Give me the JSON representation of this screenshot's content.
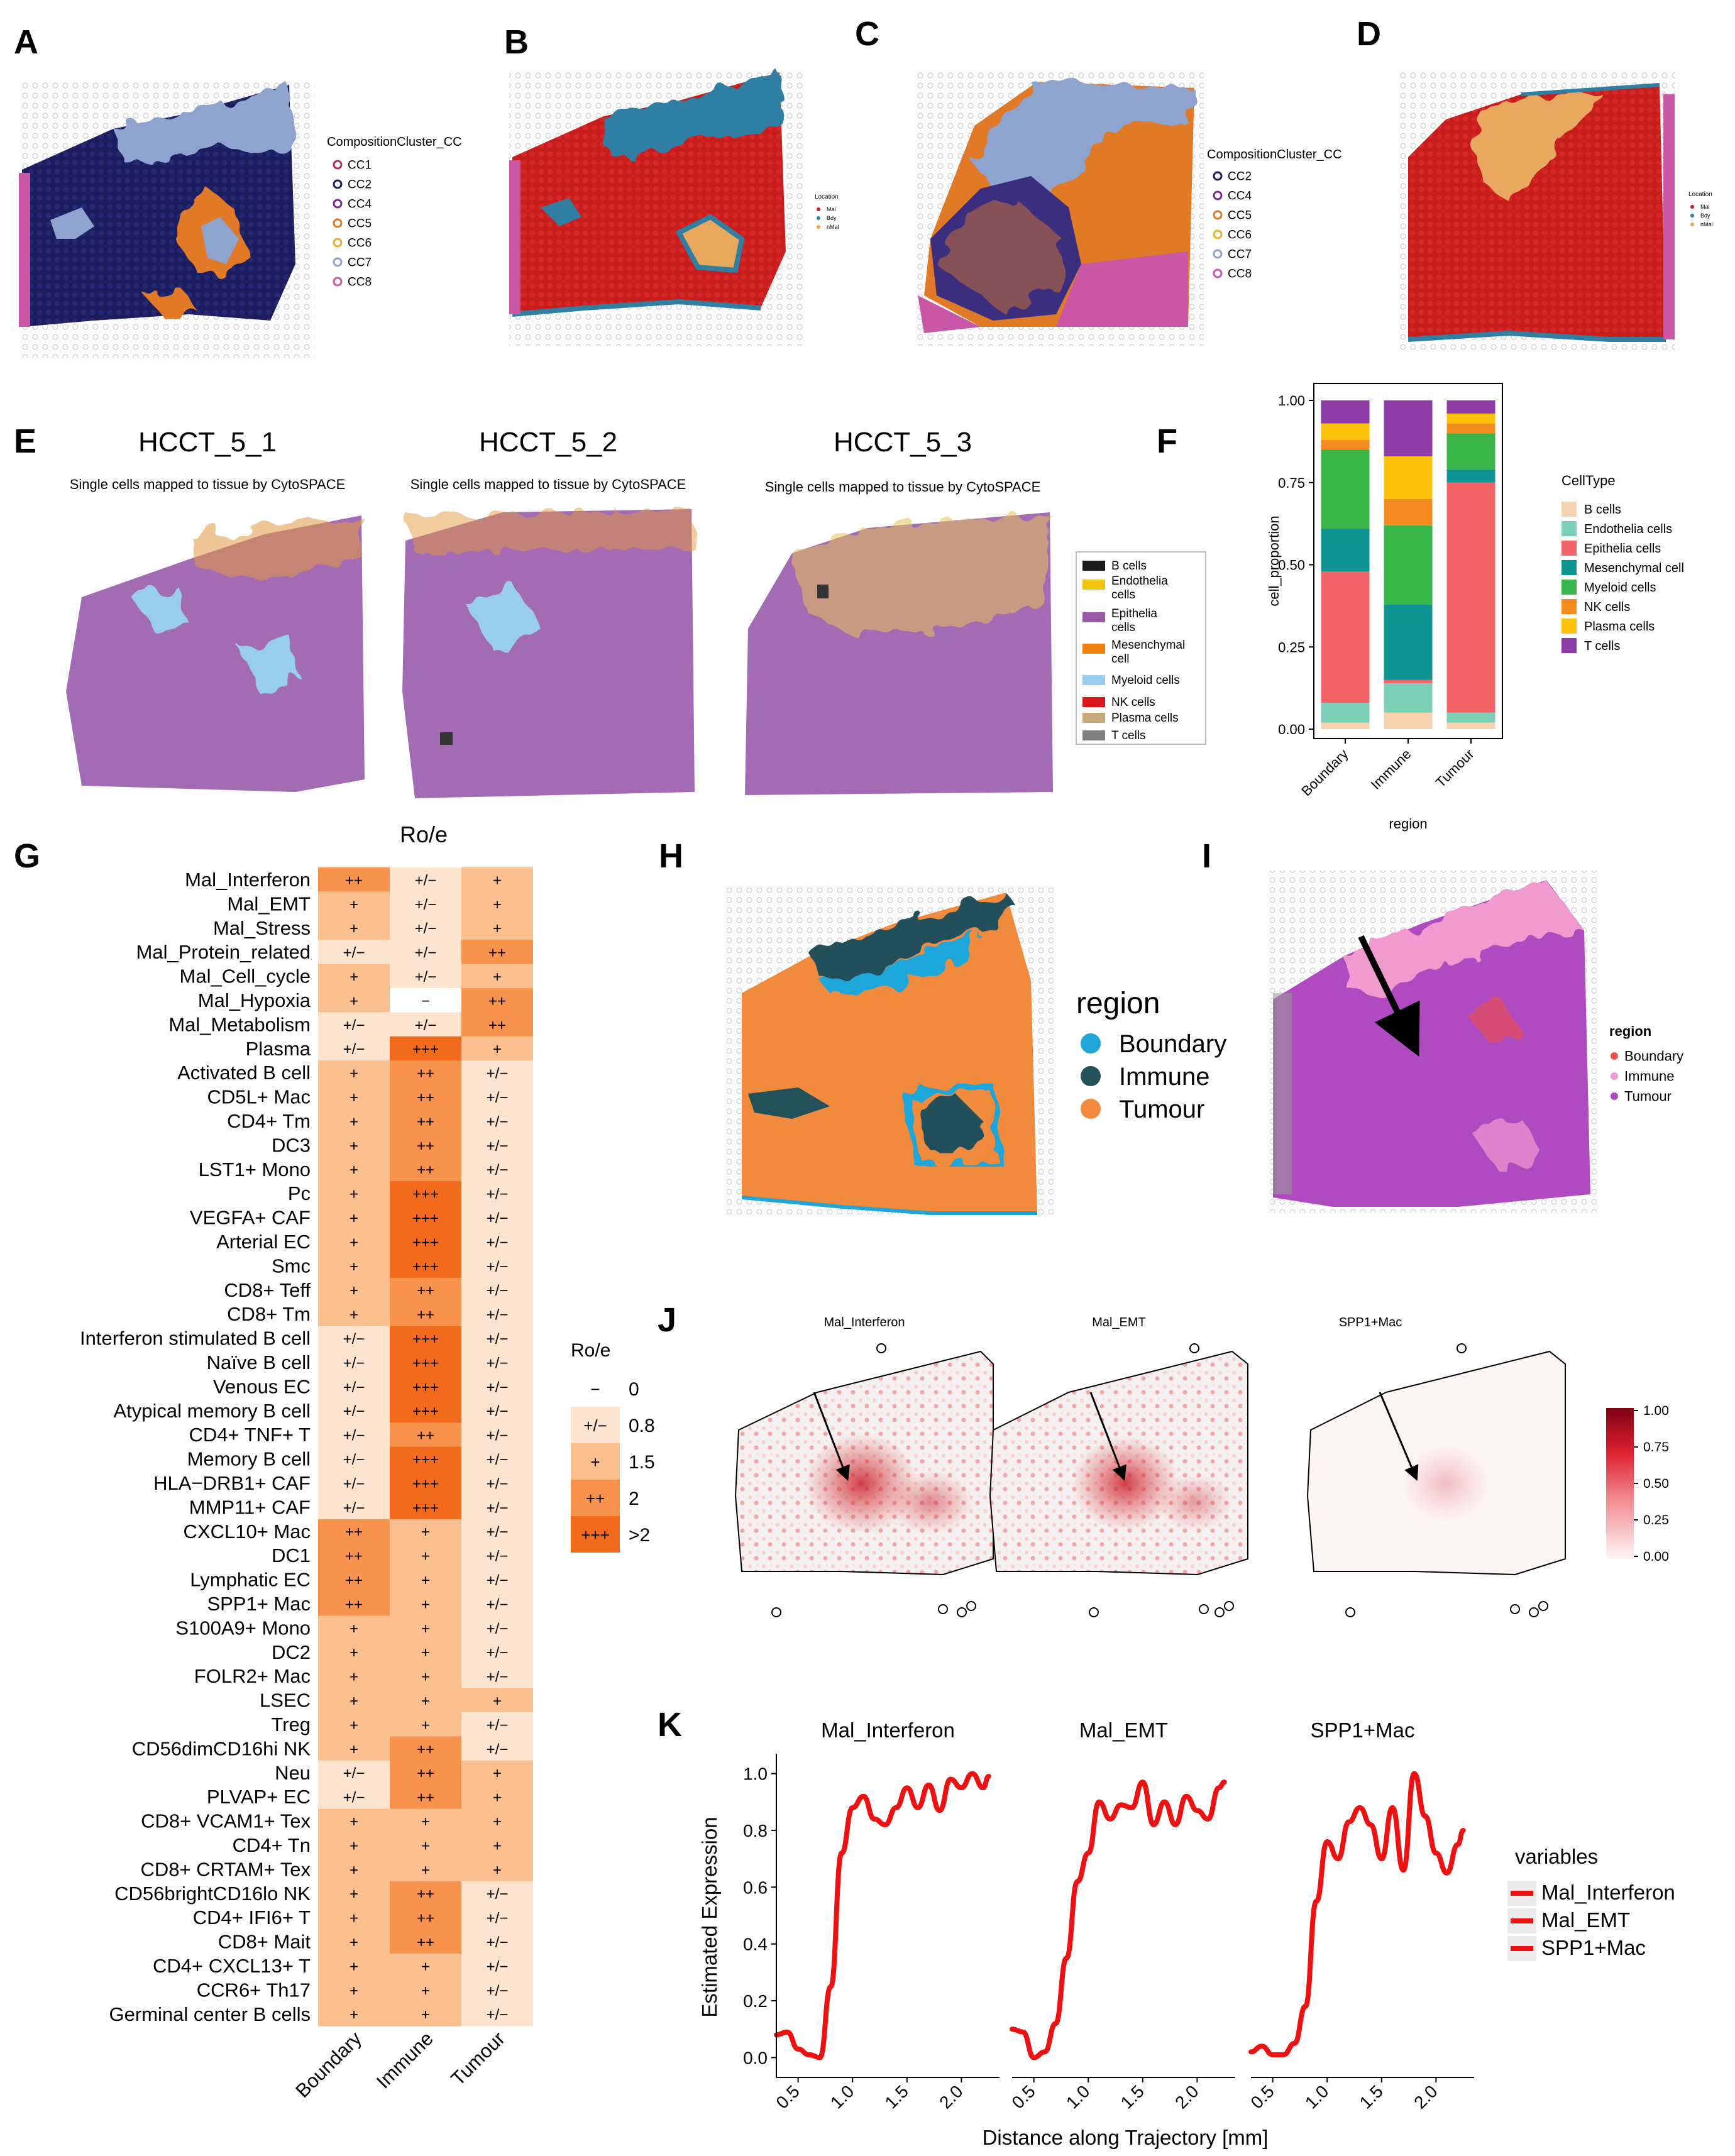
{
  "panel_labels": [
    "A",
    "B",
    "C",
    "D",
    "E",
    "F",
    "G",
    "H",
    "I",
    "J",
    "K"
  ],
  "panelA": {
    "legend_title": "CompositionCluster_CC",
    "items": [
      {
        "label": "CC1",
        "color": "#a8325a"
      },
      {
        "label": "CC2",
        "color": "#1b1d5e"
      },
      {
        "label": "CC4",
        "color": "#7a2a8c"
      },
      {
        "label": "CC5",
        "color": "#e07a26"
      },
      {
        "label": "CC6",
        "color": "#e4b032"
      },
      {
        "label": "CC7",
        "color": "#8fa3cf"
      },
      {
        "label": "CC8",
        "color": "#c957a6"
      }
    ]
  },
  "panelB": {
    "legend_title": "Location",
    "items": [
      {
        "label": "Mal",
        "color": "#cc1f1f"
      },
      {
        "label": "Bdy",
        "color": "#2f7fa3"
      },
      {
        "label": "nMal",
        "color": "#e8a85e"
      }
    ]
  },
  "panelC": {
    "legend_title": "CompositionCluster_CC",
    "items": [
      {
        "label": "CC2",
        "color": "#1b1d5e"
      },
      {
        "label": "CC4",
        "color": "#7a2a8c"
      },
      {
        "label": "CC5",
        "color": "#e07a26"
      },
      {
        "label": "CC6",
        "color": "#e4b032"
      },
      {
        "label": "CC7",
        "color": "#8fa3cf"
      },
      {
        "label": "CC8",
        "color": "#c957a6"
      }
    ]
  },
  "panelD": {
    "legend_title": "Location",
    "items": [
      {
        "label": "Mal",
        "color": "#cc1f1f"
      },
      {
        "label": "Bdy",
        "color": "#2f7fa3"
      },
      {
        "label": "nMal",
        "color": "#e8a85e"
      }
    ]
  },
  "panelE": {
    "maps": [
      {
        "title": "HCCT_5_1",
        "subtitle": "Single cells mapped to tissue by CytoSPACE"
      },
      {
        "title": "HCCT_5_2",
        "subtitle": "Single cells mapped to tissue by CytoSPACE"
      },
      {
        "title": "HCCT_5_3",
        "subtitle": "Single cells mapped to tissue by CytoSPACE"
      }
    ],
    "legend": [
      {
        "label": "B cells",
        "color": "#1a1a1a"
      },
      {
        "label": "Endothelia cells",
        "color": "#f2c40f"
      },
      {
        "label": "Epithelia cells",
        "color": "#9c5ba8"
      },
      {
        "label": "Mesenchymal cell",
        "color": "#f07f0c"
      },
      {
        "label": "Myeloid cells",
        "color": "#98cdee"
      },
      {
        "label": "NK cells",
        "color": "#d7191c"
      },
      {
        "label": "Plasma cells",
        "color": "#c8a77a"
      },
      {
        "label": "T cells",
        "color": "#7f7f7f"
      }
    ]
  },
  "chart_data": [
    {
      "id": "F",
      "type": "bar",
      "stacked": true,
      "xlabel": "region",
      "ylabel": "cell_proportion",
      "ylim": [
        0,
        1
      ],
      "yticks": [
        "0.00",
        "0.25",
        "0.50",
        "0.75",
        "1.00"
      ],
      "categories": [
        "Boundary",
        "Immune",
        "Tumour"
      ],
      "legend_title": "CellType",
      "series": [
        {
          "name": "B cells",
          "color": "#f6d2b0",
          "values": [
            0.02,
            0.05,
            0.02
          ]
        },
        {
          "name": "Endothelia cells",
          "color": "#7ecfb8",
          "values": [
            0.06,
            0.09,
            0.03
          ]
        },
        {
          "name": "Epithelia cells",
          "color": "#f26467",
          "values": [
            0.4,
            0.01,
            0.7
          ]
        },
        {
          "name": "Mesenchymal cell",
          "color": "#0f9494",
          "values": [
            0.13,
            0.23,
            0.04
          ]
        },
        {
          "name": "Myeloid cells",
          "color": "#3ab54a",
          "values": [
            0.24,
            0.24,
            0.11
          ]
        },
        {
          "name": "NK cells",
          "color": "#f48b1e",
          "values": [
            0.03,
            0.08,
            0.03
          ]
        },
        {
          "name": "Plasma cells",
          "color": "#fcc10b",
          "values": [
            0.05,
            0.13,
            0.03
          ]
        },
        {
          "name": "T cells",
          "color": "#8d3ca7",
          "values": [
            0.07,
            0.17,
            0.04
          ]
        }
      ]
    },
    {
      "id": "G",
      "type": "heatmap",
      "title": "Ro/e",
      "columns": [
        "Boundary",
        "Immune",
        "Tumour"
      ],
      "legend_title": "Ro/e",
      "levels": [
        {
          "symbol": "−",
          "value": "0",
          "color": "#ffffff"
        },
        {
          "symbol": "+/−",
          "value": "0.8",
          "color": "#fde4cf"
        },
        {
          "symbol": "+",
          "value": "1.5",
          "color": "#fabf8f"
        },
        {
          "symbol": "++",
          "value": "2",
          "color": "#f7934c"
        },
        {
          "symbol": "+++",
          "value": ">2",
          "color": "#f26a1b"
        }
      ],
      "rows": [
        {
          "label": "Mal_Interferon",
          "values": [
            "++",
            "+/−",
            "+"
          ]
        },
        {
          "label": "Mal_EMT",
          "values": [
            "+",
            "+/−",
            "+"
          ]
        },
        {
          "label": "Mal_Stress",
          "values": [
            "+",
            "+/−",
            "+"
          ]
        },
        {
          "label": "Mal_Protein_related",
          "values": [
            "+/−",
            "+/−",
            "++"
          ]
        },
        {
          "label": "Mal_Cell_cycle",
          "values": [
            "+",
            "+/−",
            "+"
          ]
        },
        {
          "label": "Mal_Hypoxia",
          "values": [
            "+",
            "−",
            "++"
          ]
        },
        {
          "label": "Mal_Metabolism",
          "values": [
            "+/−",
            "+/−",
            "++"
          ]
        },
        {
          "label": "Plasma",
          "values": [
            "+/−",
            "+++",
            "+"
          ]
        },
        {
          "label": "Activated B cell",
          "values": [
            "+",
            "++",
            "+/−"
          ]
        },
        {
          "label": "CD5L+ Mac",
          "values": [
            "+",
            "++",
            "+/−"
          ]
        },
        {
          "label": "CD4+ Tm",
          "values": [
            "+",
            "++",
            "+/−"
          ]
        },
        {
          "label": "DC3",
          "values": [
            "+",
            "++",
            "+/−"
          ]
        },
        {
          "label": "LST1+ Mono",
          "values": [
            "+",
            "++",
            "+/−"
          ]
        },
        {
          "label": "Pc",
          "values": [
            "+",
            "+++",
            "+/−"
          ]
        },
        {
          "label": "VEGFA+ CAF",
          "values": [
            "+",
            "+++",
            "+/−"
          ]
        },
        {
          "label": "Arterial EC",
          "values": [
            "+",
            "+++",
            "+/−"
          ]
        },
        {
          "label": "Smc",
          "values": [
            "+",
            "+++",
            "+/−"
          ]
        },
        {
          "label": "CD8+ Teff",
          "values": [
            "+",
            "++",
            "+/−"
          ]
        },
        {
          "label": "CD8+ Tm",
          "values": [
            "+",
            "++",
            "+/−"
          ]
        },
        {
          "label": "Interferon stimulated  B cell",
          "values": [
            "+/−",
            "+++",
            "+/−"
          ]
        },
        {
          "label": "Naïve B cell",
          "values": [
            "+/−",
            "+++",
            "+/−"
          ]
        },
        {
          "label": "Venous EC",
          "values": [
            "+/−",
            "+++",
            "+/−"
          ]
        },
        {
          "label": "Atypical memory B cell",
          "values": [
            "+/−",
            "+++",
            "+/−"
          ]
        },
        {
          "label": "CD4+ TNF+ T",
          "values": [
            "+/−",
            "++",
            "+/−"
          ]
        },
        {
          "label": "Memory B cell",
          "values": [
            "+/−",
            "+++",
            "+/−"
          ]
        },
        {
          "label": "HLA−DRB1+ CAF",
          "values": [
            "+/−",
            "+++",
            "+/−"
          ]
        },
        {
          "label": "MMP11+ CAF",
          "values": [
            "+/−",
            "+++",
            "+/−"
          ]
        },
        {
          "label": "CXCL10+ Mac",
          "values": [
            "++",
            "+",
            "+/−"
          ]
        },
        {
          "label": "DC1",
          "values": [
            "++",
            "+",
            "+/−"
          ]
        },
        {
          "label": "Lymphatic EC",
          "values": [
            "++",
            "+",
            "+/−"
          ]
        },
        {
          "label": "SPP1+ Mac",
          "values": [
            "++",
            "+",
            "+/−"
          ]
        },
        {
          "label": "S100A9+ Mono",
          "values": [
            "+",
            "+",
            "+/−"
          ]
        },
        {
          "label": "DC2",
          "values": [
            "+",
            "+",
            "+/−"
          ]
        },
        {
          "label": "FOLR2+ Mac",
          "values": [
            "+",
            "+",
            "+/−"
          ]
        },
        {
          "label": "LSEC",
          "values": [
            "+",
            "+",
            "+"
          ]
        },
        {
          "label": "Treg",
          "values": [
            "+",
            "+",
            "+/−"
          ]
        },
        {
          "label": "CD56dimCD16hi NK",
          "values": [
            "+",
            "++",
            "+/−"
          ]
        },
        {
          "label": "Neu",
          "values": [
            "+/−",
            "++",
            "+"
          ]
        },
        {
          "label": "PLVAP+ EC",
          "values": [
            "+/−",
            "++",
            "+"
          ]
        },
        {
          "label": "CD8+ VCAM1+ Tex",
          "values": [
            "+",
            "+",
            "+"
          ]
        },
        {
          "label": "CD4+ Tn",
          "values": [
            "+",
            "+",
            "+"
          ]
        },
        {
          "label": "CD8+ CRTAM+ Tex",
          "values": [
            "+",
            "+",
            "+"
          ]
        },
        {
          "label": "CD56brightCD16lo NK",
          "values": [
            "+",
            "++",
            "+/−"
          ]
        },
        {
          "label": "CD4+ IFI6+ T",
          "values": [
            "+",
            "++",
            "+/−"
          ]
        },
        {
          "label": "CD8+ Mait",
          "values": [
            "+",
            "++",
            "+/−"
          ]
        },
        {
          "label": "CD4+ CXCL13+ T",
          "values": [
            "+",
            "+",
            "+/−"
          ]
        },
        {
          "label": "CCR6+ Th17",
          "values": [
            "+",
            "+",
            "+/−"
          ]
        },
        {
          "label": "Germinal center B cells",
          "values": [
            "+",
            "+",
            "+/−"
          ]
        }
      ]
    },
    {
      "id": "K",
      "type": "line",
      "xlabel": "Distance along Trajectory [mm]",
      "ylabel": "Estimated Expression",
      "xlim": [
        0.3,
        2.35
      ],
      "ylim": [
        -0.07,
        1.07
      ],
      "xticks": [
        "0.5",
        "1.0",
        "1.5",
        "2.0"
      ],
      "yticks": [
        "0.0",
        "0.2",
        "0.4",
        "0.6",
        "0.8",
        "1.0"
      ],
      "legend_title": "variables",
      "legend": [
        "Mal_Interferon",
        "Mal_EMT",
        "SPP1+Mac"
      ],
      "line_color": "#ee1111",
      "series": [
        {
          "name": "Mal_Interferon",
          "x": [
            0.3,
            0.4,
            0.5,
            0.6,
            0.7,
            0.8,
            0.9,
            1.0,
            1.1,
            1.2,
            1.3,
            1.4,
            1.5,
            1.6,
            1.7,
            1.8,
            1.9,
            2.0,
            2.1,
            2.2,
            2.25
          ],
          "y": [
            0.08,
            0.09,
            0.03,
            0.01,
            0.0,
            0.25,
            0.72,
            0.88,
            0.92,
            0.84,
            0.82,
            0.88,
            0.95,
            0.88,
            0.96,
            0.87,
            0.98,
            0.95,
            1.0,
            0.95,
            0.99
          ]
        },
        {
          "name": "Mal_EMT",
          "x": [
            0.3,
            0.4,
            0.5,
            0.6,
            0.7,
            0.8,
            0.9,
            1.0,
            1.1,
            1.2,
            1.3,
            1.4,
            1.5,
            1.6,
            1.7,
            1.8,
            1.9,
            2.0,
            2.1,
            2.2,
            2.25
          ],
          "y": [
            0.1,
            0.09,
            0.0,
            0.02,
            0.12,
            0.35,
            0.62,
            0.72,
            0.9,
            0.84,
            0.89,
            0.88,
            0.97,
            0.82,
            0.9,
            0.82,
            0.92,
            0.87,
            0.84,
            0.95,
            0.97
          ]
        },
        {
          "name": "SPP1+Mac",
          "x": [
            0.3,
            0.4,
            0.5,
            0.6,
            0.7,
            0.8,
            0.9,
            1.0,
            1.1,
            1.2,
            1.3,
            1.4,
            1.5,
            1.6,
            1.7,
            1.8,
            1.9,
            2.0,
            2.1,
            2.2,
            2.25
          ],
          "y": [
            0.02,
            0.04,
            0.01,
            0.01,
            0.05,
            0.18,
            0.55,
            0.76,
            0.7,
            0.83,
            0.88,
            0.82,
            0.7,
            0.88,
            0.66,
            1.0,
            0.85,
            0.72,
            0.65,
            0.75,
            0.8
          ]
        }
      ]
    }
  ],
  "panelH": {
    "legend_title": "region",
    "items": [
      {
        "label": "Boundary",
        "color": "#1ea6d9"
      },
      {
        "label": "Immune",
        "color": "#24505a"
      },
      {
        "label": "Tumour",
        "color": "#f08a3d"
      }
    ]
  },
  "panelI": {
    "legend_title": "region",
    "items": [
      {
        "label": "Boundary",
        "color": "#f0504a"
      },
      {
        "label": "Immune",
        "color": "#f09ad0"
      },
      {
        "label": "Tumour",
        "color": "#b04ac0"
      }
    ]
  },
  "panelJ": {
    "maps": [
      "Mal_Interferon",
      "Mal_EMT",
      "SPP1+Mac"
    ],
    "colorbar_ticks": [
      "1.00",
      "0.75",
      "0.50",
      "0.25",
      "0.00"
    ]
  }
}
